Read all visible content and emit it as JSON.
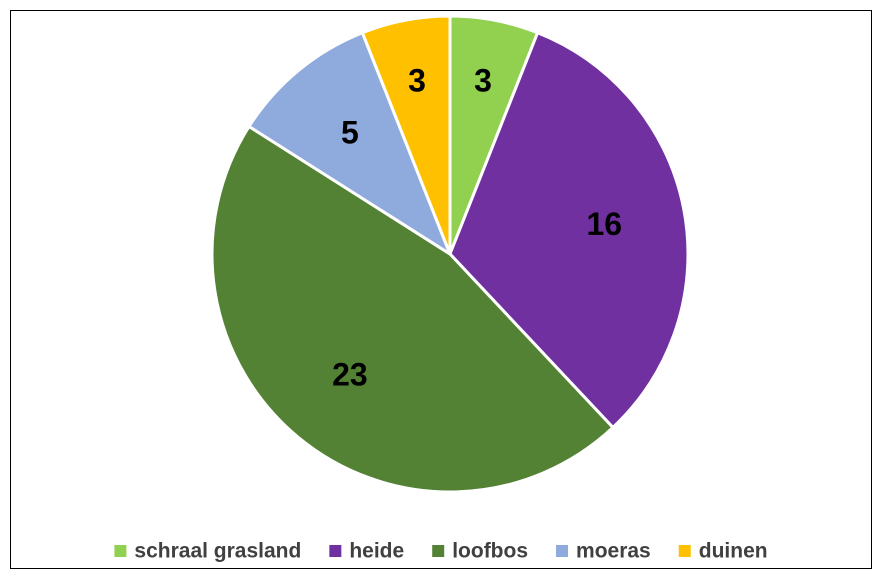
{
  "chart_data": {
    "type": "pie",
    "categories": [
      "schraal grasland",
      "heide",
      "loofbos",
      "moeras",
      "duinen"
    ],
    "values": [
      3,
      16,
      23,
      5,
      3
    ],
    "colors": [
      "#92d050",
      "#7030a0",
      "#548235",
      "#8faadc",
      "#ffc000"
    ],
    "legend": "bottom"
  }
}
